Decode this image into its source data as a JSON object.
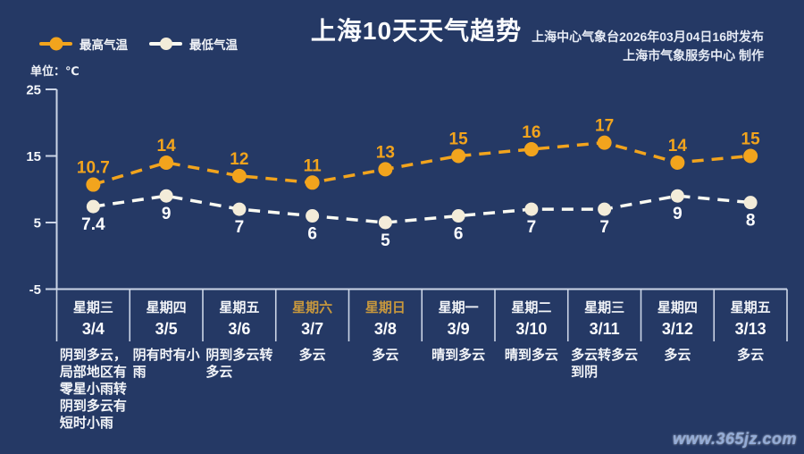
{
  "page": {
    "title": "上海10天天气趋势",
    "publisher_line1": "上海中心气象台2026年03月04日16时发布",
    "publisher_line2": "上海市气象服务中心 制作",
    "unit_label": "单位：℃",
    "watermark": "www.365jz.com"
  },
  "legend": {
    "high_label": "最高气温",
    "low_label": "最低气温"
  },
  "colors": {
    "background": "#253965",
    "high": "#f2a41d",
    "low_marker": "#f3ecd9",
    "low_line": "#fafaf2",
    "axis_line": "#ccd5e6",
    "text_primary": "#f5f7fb",
    "weekend_gold": "#c8983d",
    "low_label_text": "#fcfdff",
    "watermark": "#93abd6"
  },
  "chart_data": {
    "type": "line",
    "title": "上海10天天气趋势",
    "unit": "℃",
    "categories": [
      "3/4",
      "3/5",
      "3/6",
      "3/7",
      "3/8",
      "3/9",
      "3/10",
      "3/11",
      "3/12",
      "3/13"
    ],
    "weekdays": [
      "星期三",
      "星期四",
      "星期五",
      "星期六",
      "星期日",
      "星期一",
      "星期二",
      "星期三",
      "星期四",
      "星期五"
    ],
    "is_weekend": [
      false,
      false,
      false,
      true,
      true,
      false,
      false,
      false,
      false,
      false
    ],
    "series": [
      {
        "name": "最高气温",
        "color_key": "high",
        "values": [
          10.7,
          14,
          12,
          11,
          13,
          15,
          16,
          17,
          14,
          15
        ]
      },
      {
        "name": "最低气温",
        "color_key": "low",
        "values": [
          7.4,
          9,
          7,
          6,
          5,
          6,
          7,
          7,
          9,
          8
        ]
      }
    ],
    "weather_lines": [
      [
        "阴到多云，",
        "局部地区有",
        "零星小雨转",
        "阴到多云有",
        "短时小雨"
      ],
      [
        "阴有时有小",
        "雨"
      ],
      [
        "阴到多云转",
        "多云"
      ],
      [
        "多云"
      ],
      [
        "多云"
      ],
      [
        "晴到多云"
      ],
      [
        "晴到多云"
      ],
      [
        "多云转多云",
        "到阴"
      ],
      [
        "多云"
      ],
      [
        "多云"
      ]
    ],
    "yticks": [
      25,
      15,
      5,
      -5
    ],
    "ylim": [
      -5,
      25
    ],
    "grid": false,
    "legend_position": "top-left"
  }
}
